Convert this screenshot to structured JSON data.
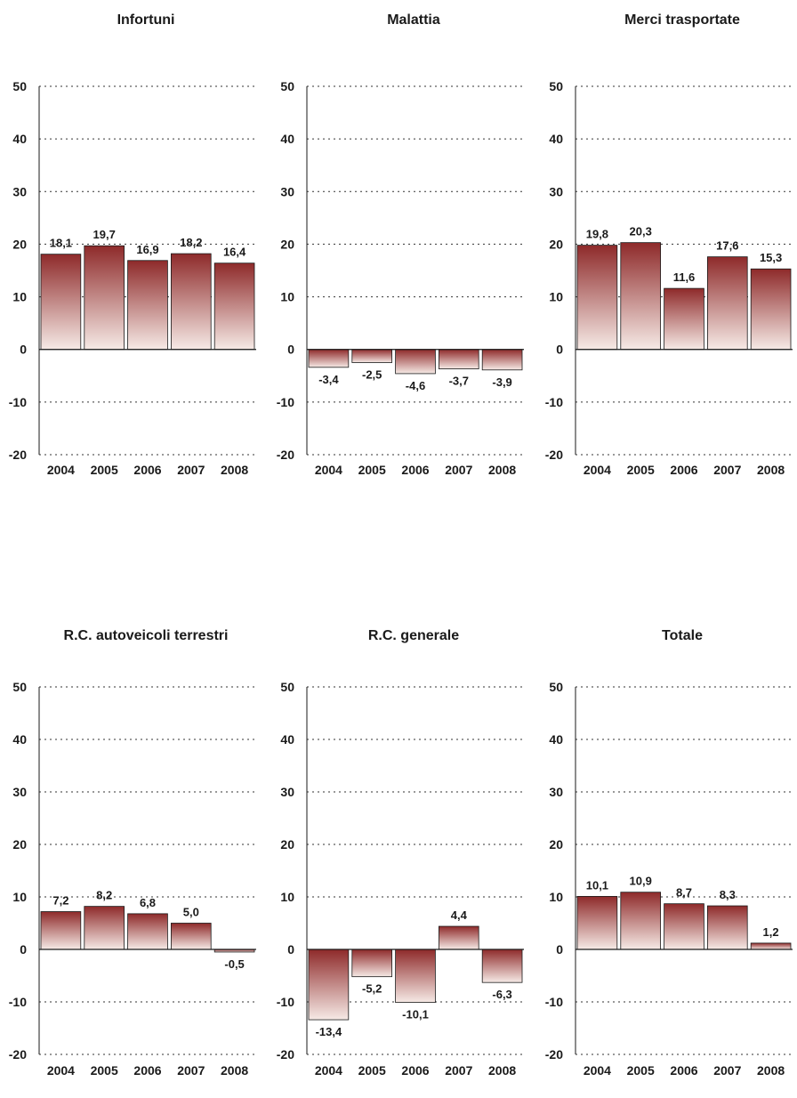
{
  "chart_data": [
    {
      "type": "bar",
      "title": "Infortuni",
      "categories": [
        "2004",
        "2005",
        "2006",
        "2007",
        "2008"
      ],
      "values": [
        18.1,
        19.7,
        16.9,
        18.2,
        16.4
      ],
      "value_labels": [
        "18,1",
        "19,7",
        "16,9",
        "18,2",
        "16,4"
      ],
      "ylim": [
        -20,
        50
      ],
      "yticks": [
        50,
        40,
        30,
        20,
        10,
        0,
        -10,
        -20
      ],
      "grid": true
    },
    {
      "type": "bar",
      "title": "Malattia",
      "categories": [
        "2004",
        "2005",
        "2006",
        "2007",
        "2008"
      ],
      "values": [
        -3.4,
        -2.5,
        -4.6,
        -3.7,
        -3.9
      ],
      "value_labels": [
        "-3,4",
        "-2,5",
        "-4,6",
        "-3,7",
        "-3,9"
      ],
      "ylim": [
        -20,
        50
      ],
      "yticks": [
        50,
        40,
        30,
        20,
        10,
        0,
        -10,
        -20
      ],
      "grid": true
    },
    {
      "type": "bar",
      "title": "Merci trasportate",
      "categories": [
        "2004",
        "2005",
        "2006",
        "2007",
        "2008"
      ],
      "values": [
        19.8,
        20.3,
        11.6,
        17.6,
        15.3
      ],
      "value_labels": [
        "19,8",
        "20,3",
        "11,6",
        "17,6",
        "15,3"
      ],
      "ylim": [
        -20,
        50
      ],
      "yticks": [
        50,
        40,
        30,
        20,
        10,
        0,
        -10,
        -20
      ],
      "grid": true
    },
    {
      "type": "bar",
      "title": "R.C. autoveicoli terrestri",
      "categories": [
        "2004",
        "2005",
        "2006",
        "2007",
        "2008"
      ],
      "values": [
        7.2,
        8.2,
        6.8,
        5.0,
        -0.5
      ],
      "value_labels": [
        "7,2",
        "8,2",
        "6,8",
        "5,0",
        "-0,5"
      ],
      "ylim": [
        -20,
        50
      ],
      "yticks": [
        50,
        40,
        30,
        20,
        10,
        0,
        -10,
        -20
      ],
      "grid": true
    },
    {
      "type": "bar",
      "title": "R.C. generale",
      "categories": [
        "2004",
        "2005",
        "2006",
        "2007",
        "2008"
      ],
      "values": [
        -13.4,
        -5.2,
        -10.1,
        4.4,
        -6.3
      ],
      "value_labels": [
        "-13,4",
        "-5,2",
        "-10,1",
        "4,4",
        "-6,3"
      ],
      "ylim": [
        -20,
        50
      ],
      "yticks": [
        50,
        40,
        30,
        20,
        10,
        0,
        -10,
        -20
      ],
      "grid": true
    },
    {
      "type": "bar",
      "title": "Totale",
      "categories": [
        "2004",
        "2005",
        "2006",
        "2007",
        "2008"
      ],
      "values": [
        10.1,
        10.9,
        8.7,
        8.3,
        1.2
      ],
      "value_labels": [
        "10,1",
        "10,9",
        "8,7",
        "8,3",
        "1,2"
      ],
      "ylim": [
        -20,
        50
      ],
      "yticks": [
        50,
        40,
        30,
        20,
        10,
        0,
        -10,
        -20
      ],
      "grid": true
    }
  ],
  "colors": {
    "bar_top": "#8e2a2a",
    "bar_bottom": "#f6eae6",
    "bar_stroke": "#1a1a1a",
    "grid": "#333333",
    "axis": "#1a1a1a"
  }
}
